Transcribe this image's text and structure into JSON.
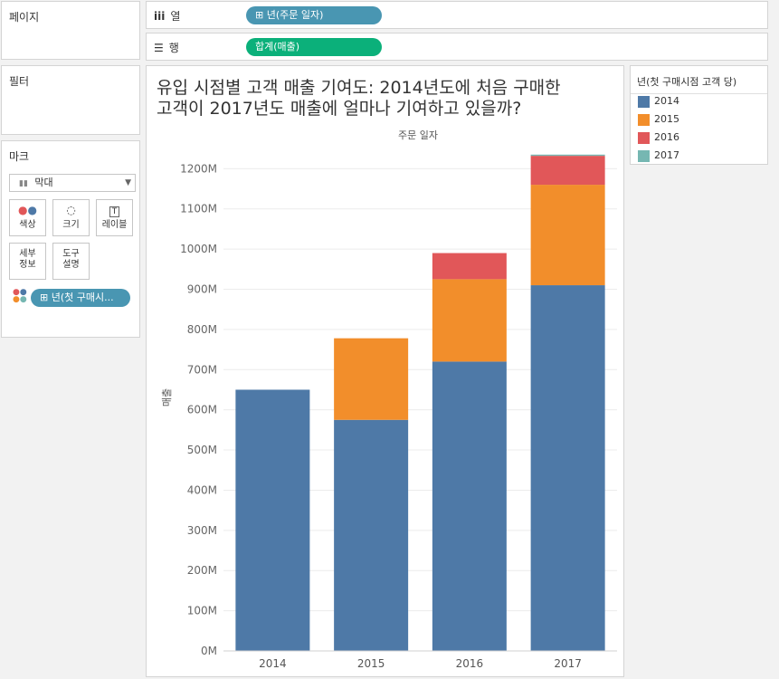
{
  "shelves": {
    "pages_label": "페이지",
    "columns_icon": "iii",
    "columns_label": "열",
    "columns_pill": "년(주문 일자)",
    "rows_icon": "☰",
    "rows_label": "행",
    "rows_pill": "합계(매출)"
  },
  "filters": {
    "title": "필터"
  },
  "marks": {
    "title": "마크",
    "type": "막대",
    "buttons": {
      "color": "색상",
      "size": "크기",
      "label": "레이블",
      "detail_1": "세부",
      "detail_2": "정보",
      "tooltip_1": "도구",
      "tooltip_2": "설명"
    },
    "color_pill": "년(첫 구매시..."
  },
  "legend": {
    "title": "년(첫 구매시점 고객 당)",
    "items": [
      {
        "label": "2014",
        "color": "#4e79a7"
      },
      {
        "label": "2015",
        "color": "#f28e2b"
      },
      {
        "label": "2016",
        "color": "#e15759"
      },
      {
        "label": "2017",
        "color": "#76b7b2"
      }
    ]
  },
  "chart_data": {
    "type": "bar",
    "stacked": true,
    "title_line1": "유입 시점별 고객 매출 기여도: 2014년도에 처음 구매한",
    "title_line2": "고객이 2017년도 매출에 얼마나 기여하고 있을까?",
    "xlabel_top": "주문 일자",
    "ylabel": "매출",
    "categories": [
      "2014",
      "2015",
      "2016",
      "2017"
    ],
    "series": [
      {
        "name": "2014",
        "color": "#4e79a7",
        "values": [
          650,
          575,
          720,
          910
        ]
      },
      {
        "name": "2015",
        "color": "#f28e2b",
        "values": [
          0,
          203,
          205,
          250
        ]
      },
      {
        "name": "2016",
        "color": "#e15759",
        "values": [
          0,
          0,
          65,
          72
        ]
      },
      {
        "name": "2017",
        "color": "#76b7b2",
        "values": [
          0,
          0,
          0,
          3
        ]
      }
    ],
    "y_ticks": [
      "0M",
      "100M",
      "200M",
      "300M",
      "400M",
      "500M",
      "600M",
      "700M",
      "800M",
      "900M",
      "1000M",
      "1100M",
      "1200M"
    ],
    "ylim": [
      0,
      1230
    ]
  }
}
